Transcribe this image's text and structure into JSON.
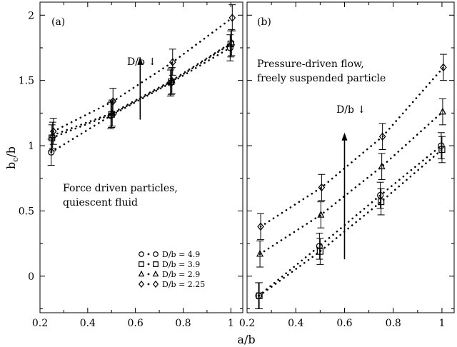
{
  "chart_data": [
    {
      "type": "scatter",
      "panel_label": "(a)",
      "xlim": [
        0.2,
        1.05
      ],
      "ylim": [
        -0.28,
        2.1
      ],
      "x_ticks": [
        "0.2",
        "0.4",
        "0.6",
        "0.8",
        "1"
      ],
      "y_ticks": [
        "0",
        "0.5",
        "1",
        "1.5",
        "2"
      ],
      "ylabel_main": "b",
      "ylabel_sub": "c",
      "ylabel_tail": "/b",
      "annotation_lines": [
        "Force driven particles,",
        "quiescent fluid"
      ],
      "arrow_label": "D/b ↓",
      "arrow": {
        "x": 0.62,
        "y_start": 1.2,
        "y_end": 1.68
      },
      "series": [
        {
          "name": "D/b = 4.9",
          "marker": "circle",
          "x": [
            0.25,
            0.5,
            0.75,
            1.0
          ],
          "y": [
            0.95,
            1.23,
            1.48,
            1.75
          ],
          "err": [
            0.1,
            0.1,
            0.1,
            0.1
          ]
        },
        {
          "name": "D/b = 3.9",
          "marker": "square",
          "x": [
            0.25,
            0.5,
            0.75,
            1.0
          ],
          "y": [
            1.06,
            1.24,
            1.49,
            1.78
          ],
          "err": [
            0.1,
            0.1,
            0.1,
            0.1
          ]
        },
        {
          "name": "D/b = 2.9",
          "marker": "triangle",
          "x": [
            0.25,
            0.5,
            0.75,
            1.0
          ],
          "y": [
            1.08,
            1.25,
            1.5,
            1.79
          ],
          "err": [
            0.1,
            0.1,
            0.1,
            0.1
          ]
        },
        {
          "name": "D/b = 2.25",
          "marker": "diamond",
          "x": [
            0.25,
            0.5,
            0.75,
            1.0
          ],
          "y": [
            1.11,
            1.34,
            1.64,
            1.98
          ],
          "err": [
            0.1,
            0.1,
            0.1,
            0.1
          ]
        }
      ]
    },
    {
      "type": "scatter",
      "panel_label": "(b)",
      "xlim": [
        0.2,
        1.05
      ],
      "ylim": [
        -0.28,
        2.1
      ],
      "x_ticks": [
        "0.2",
        "0.4",
        "0.6",
        "0.8",
        "1"
      ],
      "annotation_lines": [
        "Pressure-driven flow,",
        "freely suspended particle"
      ],
      "arrow_label": "D/b ↓",
      "arrow": {
        "x": 0.6,
        "y_start": 0.13,
        "y_end": 1.1
      },
      "series": [
        {
          "name": "D/b = 4.9",
          "marker": "circle",
          "x": [
            0.25,
            0.5,
            0.75,
            1.0
          ],
          "y": [
            -0.15,
            0.23,
            0.62,
            1.0
          ],
          "err": [
            0.1,
            0.1,
            0.1,
            0.1
          ]
        },
        {
          "name": "D/b = 3.9",
          "marker": "square",
          "x": [
            0.25,
            0.5,
            0.75,
            1.0
          ],
          "y": [
            -0.15,
            0.19,
            0.57,
            0.97
          ],
          "err": [
            0.1,
            0.1,
            0.1,
            0.1
          ]
        },
        {
          "name": "D/b = 2.9",
          "marker": "triangle",
          "x": [
            0.25,
            0.5,
            0.75,
            1.0
          ],
          "y": [
            0.17,
            0.47,
            0.84,
            1.26
          ],
          "err": [
            0.1,
            0.1,
            0.1,
            0.1
          ]
        },
        {
          "name": "D/b = 2.25",
          "marker": "diamond",
          "x": [
            0.25,
            0.5,
            0.75,
            1.0
          ],
          "y": [
            0.38,
            0.68,
            1.07,
            1.6
          ],
          "err": [
            0.1,
            0.1,
            0.1,
            0.1
          ]
        }
      ]
    }
  ],
  "legend": {
    "placement": "bottom-right of panel (a)",
    "entries": [
      "D/b = 4.9",
      "D/b = 3.9",
      "D/b = 2.9",
      "D/b = 2.25"
    ]
  },
  "xlabel": "a/b"
}
